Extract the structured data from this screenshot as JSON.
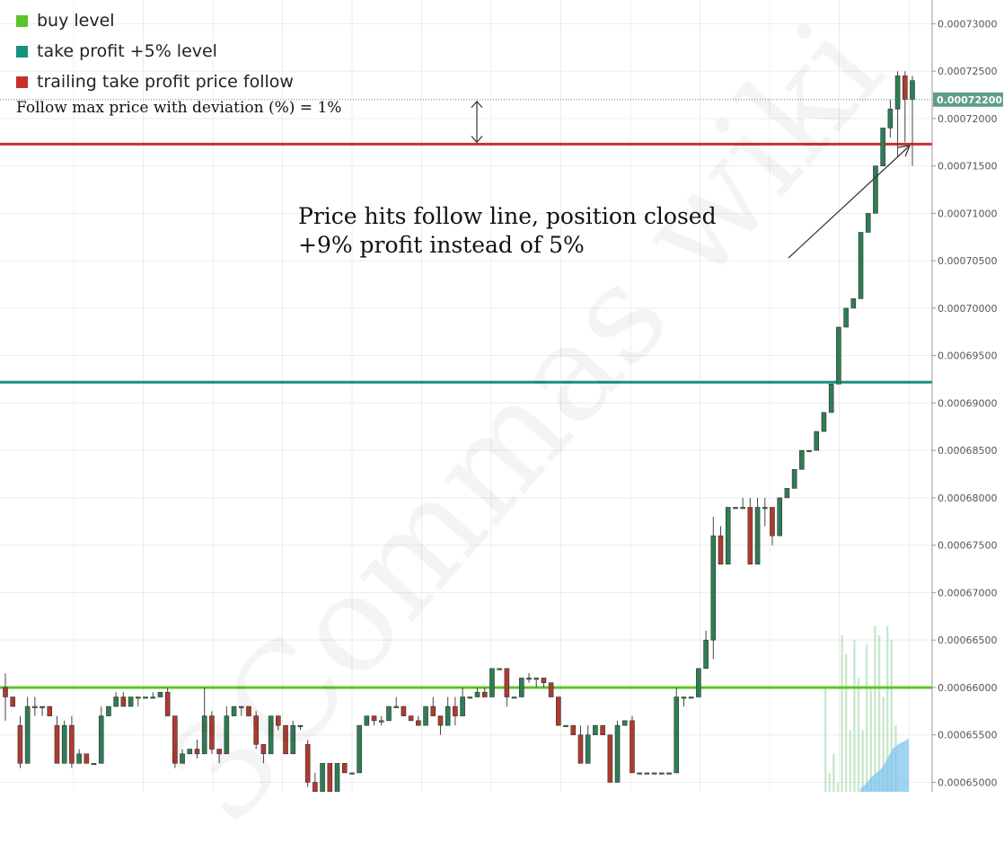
{
  "legend": [
    {
      "label": "buy level",
      "color": "#5cc427"
    },
    {
      "label": "take profit +5% level",
      "color": "#14917f"
    },
    {
      "label": "trailing take profit price follow",
      "color": "#c9302c"
    }
  ],
  "notes": {
    "follow_deviation": "Follow max price with deviation (%) = 1%",
    "annotation_line1": "Price hits follow line, position closed",
    "annotation_line2": "+9% profit instead of 5%",
    "watermark": "3Commas wiki"
  },
  "chart_data": {
    "type": "candlestick",
    "ylim": [
      0.000649,
      0.0007325
    ],
    "yticks": [
      "0.00065000",
      "0.00065500",
      "0.00066000",
      "0.00066500",
      "0.00067000",
      "0.00067500",
      "0.00068000",
      "0.00068500",
      "0.00069000",
      "0.00069500",
      "0.00070000",
      "0.00070500",
      "0.00071000",
      "0.00071500",
      "0.00072000",
      "0.00072500",
      "0.00073000"
    ],
    "current_price_label": "0.00072200",
    "current_price": 0.000722,
    "levels": [
      {
        "legend": "buy level",
        "value": 0.00066,
        "color": "#5cc427"
      },
      {
        "legend": "take profit +5% level",
        "value": 0.0006922,
        "color": "#14917f"
      },
      {
        "legend": "trailing take profit price follow",
        "value": 0.0007173,
        "color": "#c9302c"
      }
    ],
    "colors": {
      "up": "#2e7d55",
      "down": "#b03a2e",
      "volume": "#9ed6a4",
      "volume_area": "#7ec4ee"
    },
    "candles": [
      [
        0.00066,
        0.000659,
        0.0006615,
        0.0006565
      ],
      [
        0.000659,
        0.000658,
        0.000659,
        0.000658
      ],
      [
        0.000656,
        0.000652,
        0.000657,
        0.0006515
      ],
      [
        0.000652,
        0.000658,
        0.000659,
        0.000652
      ],
      [
        0.000658,
        0.000658,
        0.000659,
        0.000657
      ],
      [
        0.000658,
        0.000658,
        0.000658,
        0.000657
      ],
      [
        0.000658,
        0.000657,
        0.000658,
        0.000657
      ],
      [
        0.000656,
        0.000652,
        0.000657,
        0.000652
      ],
      [
        0.000652,
        0.000656,
        0.0006565,
        0.000652
      ],
      [
        0.000656,
        0.000652,
        0.000657,
        0.0006515
      ],
      [
        0.000652,
        0.000653,
        0.0006535,
        0.000652
      ],
      [
        0.000653,
        0.000652,
        0.000653,
        0.000652
      ],
      [
        0.000652,
        0.000652,
        0.000652,
        0.000652
      ],
      [
        0.000652,
        0.000657,
        0.000658,
        0.000652
      ],
      [
        0.000657,
        0.000658,
        0.000658,
        0.000657
      ],
      [
        0.000658,
        0.000659,
        0.0006595,
        0.000658
      ],
      [
        0.000659,
        0.000658,
        0.0006595,
        0.000658
      ],
      [
        0.000658,
        0.000659,
        0.000659,
        0.000658
      ],
      [
        0.000659,
        0.000659,
        0.000659,
        0.000658
      ],
      [
        0.000659,
        0.000659,
        0.000659,
        0.000659
      ],
      [
        0.000659,
        0.000659,
        0.0006595,
        0.000659
      ],
      [
        0.000659,
        0.0006595,
        0.0006595,
        0.000659
      ],
      [
        0.0006595,
        0.000657,
        0.00066,
        0.000657
      ],
      [
        0.000657,
        0.000652,
        0.000657,
        0.0006515
      ],
      [
        0.000652,
        0.000653,
        0.0006535,
        0.000652
      ],
      [
        0.000653,
        0.0006535,
        0.0006535,
        0.000653
      ],
      [
        0.0006535,
        0.000653,
        0.0006545,
        0.0006525
      ],
      [
        0.000653,
        0.000657,
        0.00066,
        0.000653
      ],
      [
        0.000657,
        0.0006535,
        0.0006575,
        0.000653
      ],
      [
        0.0006535,
        0.000653,
        0.0006535,
        0.000652
      ],
      [
        0.000653,
        0.000657,
        0.000658,
        0.000653
      ],
      [
        0.000657,
        0.000658,
        0.000658,
        0.000657
      ],
      [
        0.000658,
        0.000658,
        0.000658,
        0.000657
      ],
      [
        0.000658,
        0.000657,
        0.000658,
        0.000657
      ],
      [
        0.000657,
        0.000654,
        0.0006575,
        0.0006535
      ],
      [
        0.000654,
        0.000653,
        0.000654,
        0.000652
      ],
      [
        0.000653,
        0.000657,
        0.000657,
        0.000653
      ],
      [
        0.000657,
        0.000656,
        0.000657,
        0.0006555
      ],
      [
        0.000656,
        0.000653,
        0.000656,
        0.000653
      ],
      [
        0.000653,
        0.000656,
        0.0006565,
        0.000653
      ],
      [
        0.000656,
        0.000656,
        0.000656,
        0.0006555
      ],
      [
        0.000654,
        0.00065,
        0.0006545,
        0.0006495
      ],
      [
        0.00065,
        0.000649,
        0.000651,
        0.000649
      ],
      [
        0.000649,
        0.000652,
        0.000652,
        0.000649
      ],
      [
        0.000652,
        0.000649,
        0.000652,
        0.000649
      ],
      [
        0.000649,
        0.000652,
        0.000652,
        0.000649
      ],
      [
        0.000652,
        0.000651,
        0.000652,
        0.000651
      ],
      [
        0.000651,
        0.000651,
        0.000651,
        0.000651
      ],
      [
        0.000651,
        0.000656,
        0.000656,
        0.000651
      ],
      [
        0.000656,
        0.000657,
        0.000657,
        0.000656
      ],
      [
        0.000657,
        0.0006565,
        0.000657,
        0.000656
      ],
      [
        0.0006565,
        0.0006565,
        0.000657,
        0.000656
      ],
      [
        0.0006565,
        0.000658,
        0.000658,
        0.0006565
      ],
      [
        0.000658,
        0.000658,
        0.000659,
        0.000658
      ],
      [
        0.000658,
        0.000657,
        0.000658,
        0.000657
      ],
      [
        0.000657,
        0.0006565,
        0.000657,
        0.0006565
      ],
      [
        0.0006565,
        0.000656,
        0.000657,
        0.000656
      ],
      [
        0.000656,
        0.000658,
        0.000658,
        0.000656
      ],
      [
        0.000658,
        0.000657,
        0.000659,
        0.000657
      ],
      [
        0.000657,
        0.000656,
        0.000657,
        0.000655
      ],
      [
        0.000656,
        0.000658,
        0.000659,
        0.000656
      ],
      [
        0.000658,
        0.000657,
        0.000659,
        0.000656
      ],
      [
        0.000657,
        0.000659,
        0.00066,
        0.000657
      ],
      [
        0.000659,
        0.000659,
        0.000659,
        0.000659
      ],
      [
        0.000659,
        0.0006595,
        0.00066,
        0.000659
      ],
      [
        0.0006595,
        0.000659,
        0.00066,
        0.000659
      ],
      [
        0.000659,
        0.000662,
        0.000662,
        0.000659
      ],
      [
        0.000662,
        0.000662,
        0.000662,
        0.000662
      ],
      [
        0.000662,
        0.000659,
        0.000662,
        0.000658
      ],
      [
        0.000659,
        0.000659,
        0.000659,
        0.000659
      ],
      [
        0.000659,
        0.000661,
        0.000661,
        0.000659
      ],
      [
        0.000661,
        0.000661,
        0.0006615,
        0.0006605
      ],
      [
        0.000661,
        0.000661,
        0.000661,
        0.00066
      ],
      [
        0.000661,
        0.0006605,
        0.000661,
        0.00066
      ],
      [
        0.0006605,
        0.000659,
        0.00066,
        0.000659
      ],
      [
        0.000659,
        0.000656,
        0.000659,
        0.000656
      ],
      [
        0.000656,
        0.000656,
        0.000656,
        0.000656
      ],
      [
        0.000656,
        0.000655,
        0.000656,
        0.000655
      ],
      [
        0.000655,
        0.000652,
        0.000656,
        0.000652
      ],
      [
        0.000652,
        0.000655,
        0.000656,
        0.000652
      ],
      [
        0.000655,
        0.000656,
        0.000656,
        0.000655
      ],
      [
        0.000656,
        0.000655,
        0.000656,
        0.000655
      ],
      [
        0.000655,
        0.00065,
        0.000655,
        0.00065
      ],
      [
        0.00065,
        0.000656,
        0.0006565,
        0.00065
      ],
      [
        0.000656,
        0.0006565,
        0.0006565,
        0.000656
      ],
      [
        0.0006565,
        0.000651,
        0.000657,
        0.000651
      ],
      [
        0.000651,
        0.000651,
        0.000651,
        0.000651
      ],
      [
        0.000651,
        0.000651,
        0.000651,
        0.000651
      ],
      [
        0.000651,
        0.000651,
        0.000651,
        0.000651
      ],
      [
        0.000651,
        0.000651,
        0.000651,
        0.000651
      ],
      [
        0.000651,
        0.000651,
        0.000651,
        0.000651
      ],
      [
        0.000651,
        0.000659,
        0.00066,
        0.000651
      ],
      [
        0.000659,
        0.000659,
        0.000659,
        0.000658
      ],
      [
        0.000659,
        0.000659,
        0.000659,
        0.000659
      ],
      [
        0.000659,
        0.000662,
        0.000662,
        0.000659
      ],
      [
        0.000662,
        0.000665,
        0.000666,
        0.000662
      ],
      [
        0.000665,
        0.000676,
        0.000678,
        0.000663
      ],
      [
        0.000676,
        0.000673,
        0.000677,
        0.000673
      ],
      [
        0.000673,
        0.000679,
        0.000679,
        0.000673
      ],
      [
        0.000679,
        0.000679,
        0.000679,
        0.000679
      ],
      [
        0.000679,
        0.000679,
        0.00068,
        0.000679
      ],
      [
        0.000679,
        0.000673,
        0.00068,
        0.000673
      ],
      [
        0.000673,
        0.000679,
        0.00068,
        0.000673
      ],
      [
        0.000679,
        0.000679,
        0.00068,
        0.000677
      ],
      [
        0.000679,
        0.000676,
        0.000679,
        0.000675
      ],
      [
        0.000676,
        0.00068,
        0.00068,
        0.000676
      ],
      [
        0.00068,
        0.000681,
        0.000681,
        0.00068
      ],
      [
        0.000681,
        0.000683,
        0.000683,
        0.000681
      ],
      [
        0.000683,
        0.000685,
        0.000685,
        0.000683
      ],
      [
        0.000685,
        0.000685,
        0.000685,
        0.000685
      ],
      [
        0.000685,
        0.000687,
        0.000687,
        0.000685
      ],
      [
        0.000687,
        0.000689,
        0.000689,
        0.000687
      ],
      [
        0.000689,
        0.000692,
        0.000692,
        0.000689
      ],
      [
        0.000692,
        0.000698,
        0.000698,
        0.000692
      ],
      [
        0.000698,
        0.0007,
        0.0007,
        0.000698
      ],
      [
        0.0007,
        0.000701,
        0.000701,
        0.0007
      ],
      [
        0.000701,
        0.000708,
        0.000708,
        0.000701
      ],
      [
        0.000708,
        0.00071,
        0.00071,
        0.000708
      ],
      [
        0.00071,
        0.000715,
        0.000715,
        0.00071
      ],
      [
        0.000715,
        0.000719,
        0.000719,
        0.000715
      ],
      [
        0.000719,
        0.000721,
        0.000722,
        0.000718
      ],
      [
        0.000721,
        0.0007245,
        0.000725,
        0.000716
      ],
      [
        0.0007245,
        0.000722,
        0.000725,
        0.0007175
      ],
      [
        0.000722,
        0.000724,
        0.0007245,
        0.000715
      ]
    ],
    "volume": [
      [
        0.00066,
        0.000649
      ],
      [
        0.000651,
        0.000649
      ],
      [
        0.000653,
        0.000649
      ],
      [
        0.00065,
        0.000649
      ],
      [
        0.0006655,
        0.000649
      ],
      [
        0.0006635,
        0.000649
      ],
      [
        0.0006555,
        0.000649
      ],
      [
        0.000665,
        0.000649
      ],
      [
        0.000661,
        0.000649
      ],
      [
        0.0006555,
        0.000649
      ],
      [
        0.0006645,
        0.000649
      ],
      [
        0.00066,
        0.000649
      ],
      [
        0.0006665,
        0.000649
      ],
      [
        0.0006655,
        0.000649
      ],
      [
        0.000659,
        0.000649
      ],
      [
        0.0006665,
        0.000649
      ],
      [
        0.000665,
        0.000649
      ],
      [
        0.000656,
        0.000649
      ]
    ],
    "volume_area": [
      0.0006493,
      0.0006498,
      0.0006505,
      0.000651,
      0.0006515,
      0.0006525,
      0.0006535,
      0.000654,
      0.0006543,
      0.0006546
    ]
  }
}
